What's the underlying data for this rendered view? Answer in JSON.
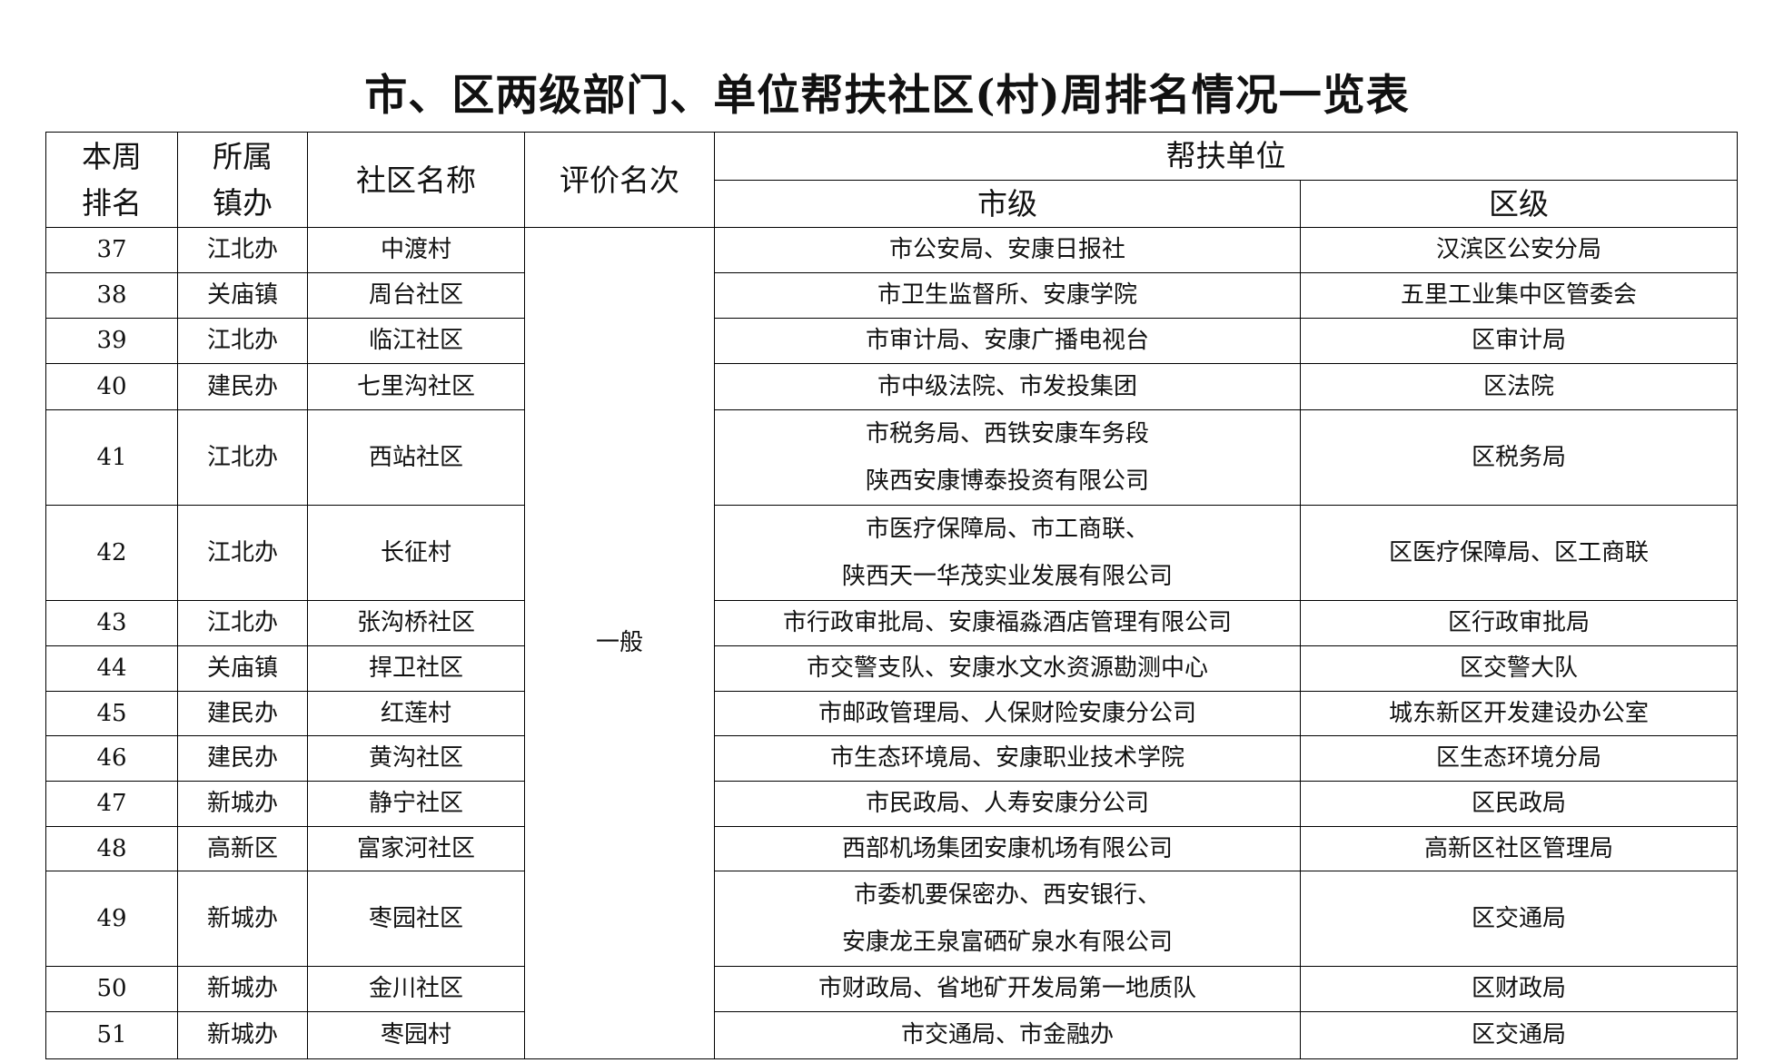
{
  "title": "市、区两级部门、单位帮扶社区(村)周排名情况一览表",
  "headers": {
    "rank": "本周\n排名",
    "rank_l1": "本周",
    "rank_l2": "排名",
    "town_l1": "所属",
    "town_l2": "镇办",
    "community": "社区名称",
    "evaluation": "评价名次",
    "support": "帮扶单位",
    "city": "市级",
    "district": "区级"
  },
  "evaluation_value": "一般",
  "rows": [
    {
      "rank": "37",
      "town": "江北办",
      "community": "中渡村",
      "city": [
        "市公安局、安康日报社"
      ],
      "district": "汉滨区公安分局"
    },
    {
      "rank": "38",
      "town": "关庙镇",
      "community": "周台社区",
      "city": [
        "市卫生监督所、安康学院"
      ],
      "district": "五里工业集中区管委会"
    },
    {
      "rank": "39",
      "town": "江北办",
      "community": "临江社区",
      "city": [
        "市审计局、安康广播电视台"
      ],
      "district": "区审计局"
    },
    {
      "rank": "40",
      "town": "建民办",
      "community": "七里沟社区",
      "city": [
        "市中级法院、市发投集团"
      ],
      "district": "区法院"
    },
    {
      "rank": "41",
      "town": "江北办",
      "community": "西站社区",
      "city": [
        "市税务局、西铁安康车务段",
        "陕西安康博泰投资有限公司"
      ],
      "district": "区税务局"
    },
    {
      "rank": "42",
      "town": "江北办",
      "community": "长征村",
      "city": [
        "市医疗保障局、市工商联、",
        "陕西天一华茂实业发展有限公司"
      ],
      "district": "区医疗保障局、区工商联"
    },
    {
      "rank": "43",
      "town": "江北办",
      "community": "张沟桥社区",
      "city": [
        "市行政审批局、安康福淼酒店管理有限公司"
      ],
      "district": "区行政审批局"
    },
    {
      "rank": "44",
      "town": "关庙镇",
      "community": "捍卫社区",
      "city": [
        "市交警支队、安康水文水资源勘测中心"
      ],
      "district": "区交警大队"
    },
    {
      "rank": "45",
      "town": "建民办",
      "community": "红莲村",
      "city": [
        "市邮政管理局、人保财险安康分公司"
      ],
      "district": "城东新区开发建设办公室"
    },
    {
      "rank": "46",
      "town": "建民办",
      "community": "黄沟社区",
      "city": [
        "市生态环境局、安康职业技术学院"
      ],
      "district": "区生态环境分局"
    },
    {
      "rank": "47",
      "town": "新城办",
      "community": "静宁社区",
      "city": [
        "市民政局、人寿安康分公司"
      ],
      "district": "区民政局"
    },
    {
      "rank": "48",
      "town": "高新区",
      "community": "富家河社区",
      "city": [
        "西部机场集团安康机场有限公司"
      ],
      "district": "高新区社区管理局"
    },
    {
      "rank": "49",
      "town": "新城办",
      "community": "枣园社区",
      "city": [
        "市委机要保密办、西安银行、",
        "安康龙王泉富硒矿泉水有限公司"
      ],
      "district": "区交通局"
    },
    {
      "rank": "50",
      "town": "新城办",
      "community": "金川社区",
      "city": [
        "市财政局、省地矿开发局第一地质队"
      ],
      "district": "区财政局"
    },
    {
      "rank": "51",
      "town": "新城办",
      "community": "枣园村",
      "city": [
        "市交通局、市金融办"
      ],
      "district": "区交通局"
    }
  ]
}
